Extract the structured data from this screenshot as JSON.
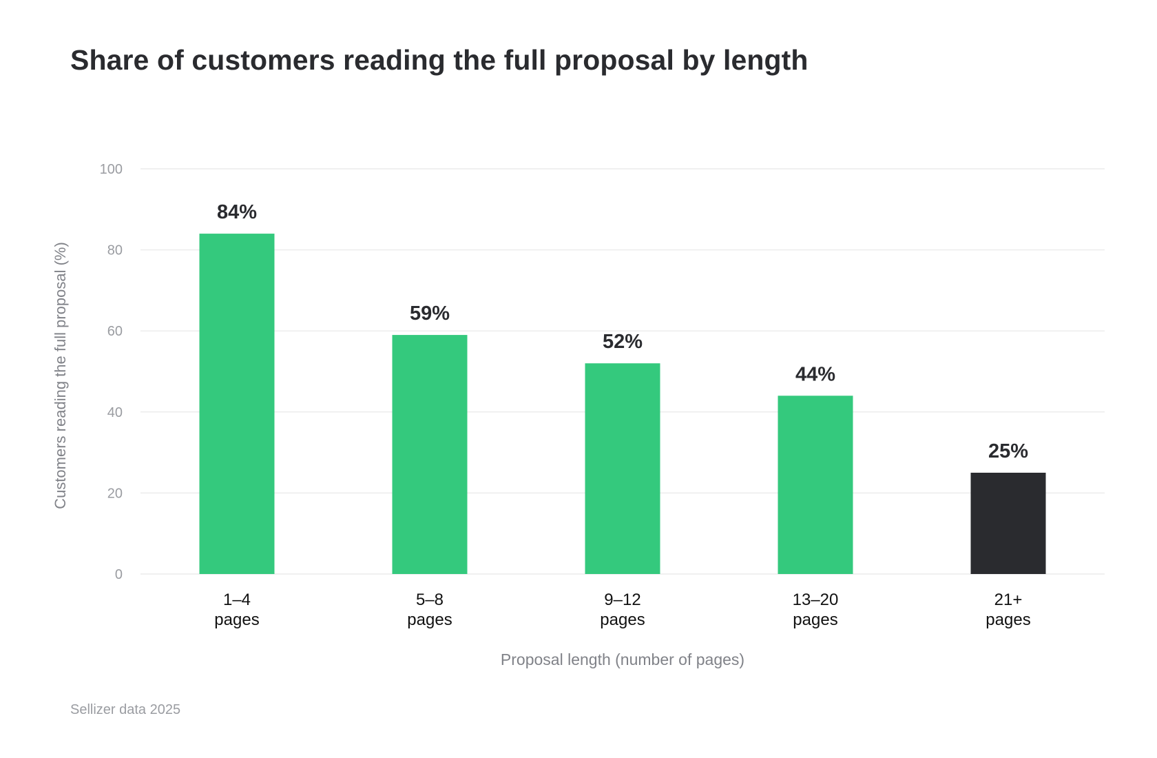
{
  "source": "Sellizer data 2025",
  "colors": {
    "accent": "#34c97d",
    "highlight": "#2a2b2f",
    "grid": "#ececec",
    "tick_text": "#9a9ca1",
    "axis_label": "#808288",
    "category_text": "#111111",
    "value_text": "#2a2b2f"
  },
  "chart_data": {
    "type": "bar",
    "title": "Share of customers reading the full proposal by length",
    "xlabel": "Proposal length (number of pages)",
    "ylabel": "Customers reading the full proposal (%)",
    "ylim": [
      0,
      100
    ],
    "yticks": [
      0,
      20,
      40,
      60,
      80,
      100
    ],
    "grid": true,
    "categories": [
      [
        "1–4",
        "pages"
      ],
      [
        "5–8",
        "pages"
      ],
      [
        "9–12",
        "pages"
      ],
      [
        "13–20",
        "pages"
      ],
      [
        "21+",
        "pages"
      ]
    ],
    "values": [
      84,
      59,
      52,
      44,
      25
    ],
    "value_labels": [
      "84%",
      "59%",
      "52%",
      "44%",
      "25%"
    ],
    "highlight_index": 4
  }
}
